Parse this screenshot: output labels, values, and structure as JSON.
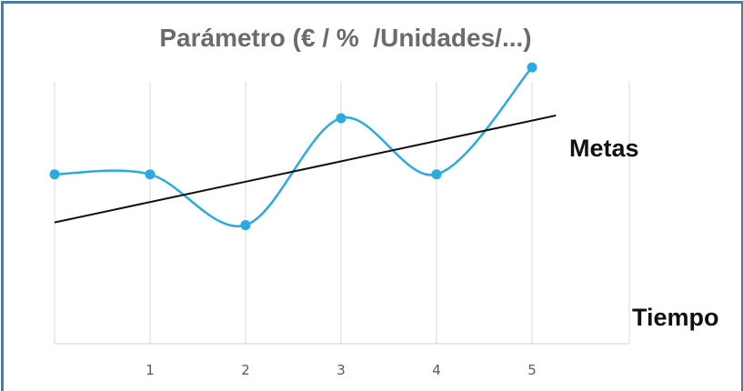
{
  "chart_data": {
    "type": "line",
    "title": "Parámetro (€ / %  /Unidades/...)",
    "xlabel": "Tiempo",
    "ylabel": "",
    "x": [
      0,
      1,
      2,
      3,
      4,
      5
    ],
    "tick_labels": [
      "1",
      "2",
      "3",
      "4",
      "5"
    ],
    "xlim": [
      0,
      6
    ],
    "ylim": [
      0,
      10
    ],
    "grid": "vertical",
    "series": [
      {
        "values": [
          4.5,
          4.5,
          2.6,
          6.6,
          4.5,
          8.5
        ],
        "color": "#29ABE2",
        "smooth": true,
        "markers": true
      }
    ],
    "goal_line": {
      "label": "Metas",
      "start": [
        0,
        2.7
      ],
      "end": [
        5.25,
        6.7
      ],
      "color": "#111111"
    }
  }
}
